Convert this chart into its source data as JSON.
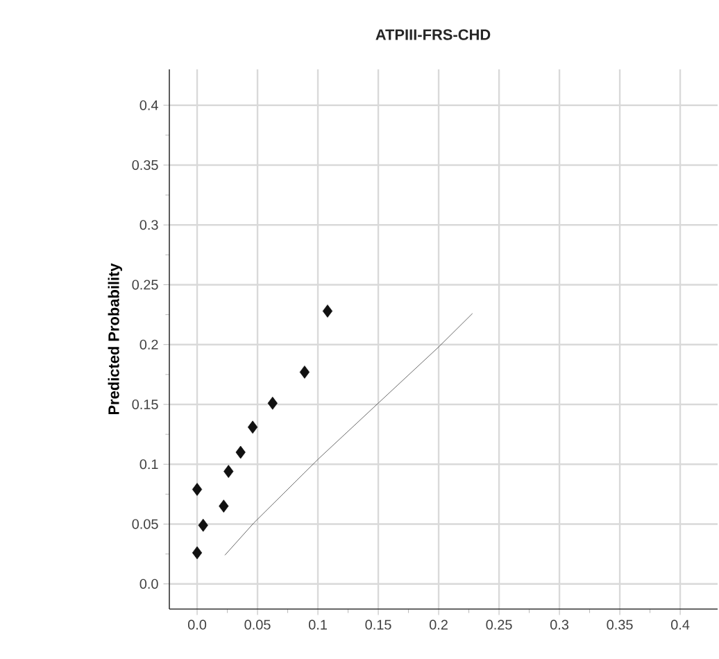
{
  "chart_data": {
    "type": "scatter",
    "title": "ATPIII-FRS-CHD",
    "ylabel": "Predicted Probability",
    "xlim": [
      -0.023,
      0.431
    ],
    "ylim": [
      -0.021,
      0.43
    ],
    "xticks": [
      {
        "value": 0,
        "label": "0.0"
      },
      {
        "value": 0.05,
        "label": "0.05"
      },
      {
        "value": 0.1,
        "label": "0.1"
      },
      {
        "value": 0.15,
        "label": "0.15"
      },
      {
        "value": 0.2,
        "label": "0.2"
      },
      {
        "value": 0.25,
        "label": "0.25"
      },
      {
        "value": 0.3,
        "label": "0.3"
      },
      {
        "value": 0.35,
        "label": "0.35"
      },
      {
        "value": 0.4,
        "label": "0.4"
      }
    ],
    "yticks": [
      {
        "value": 0,
        "label": "0.0"
      },
      {
        "value": 0.05,
        "label": "0.05"
      },
      {
        "value": 0.1,
        "label": "0.1"
      },
      {
        "value": 0.15,
        "label": "0.15"
      },
      {
        "value": 0.2,
        "label": "0.2"
      },
      {
        "value": 0.25,
        "label": "0.25"
      },
      {
        "value": 0.3,
        "label": "0.3"
      },
      {
        "value": 0.35,
        "label": "0.35"
      },
      {
        "value": 0.4,
        "label": "0.4"
      }
    ],
    "grid": true,
    "series": [
      {
        "marker": "diamond",
        "color": "#111111",
        "x": [
          0,
          0,
          0.005,
          0.022,
          0.026,
          0.036,
          0.046,
          0.0625,
          0.089,
          0.108
        ],
        "values": [
          0.026,
          0.079,
          0.049,
          0.065,
          0.094,
          0.11,
          0.131,
          0.151,
          0.177,
          0.228
        ]
      },
      {
        "type": "line",
        "marker": "none",
        "line_style": "solid",
        "color": "#444444",
        "x": [
          0.023,
          0.047,
          0.101,
          0.151,
          0.2,
          0.228
        ],
        "values": [
          0.024,
          0.051,
          0.105,
          0.152,
          0.198,
          0.226
        ]
      }
    ]
  }
}
